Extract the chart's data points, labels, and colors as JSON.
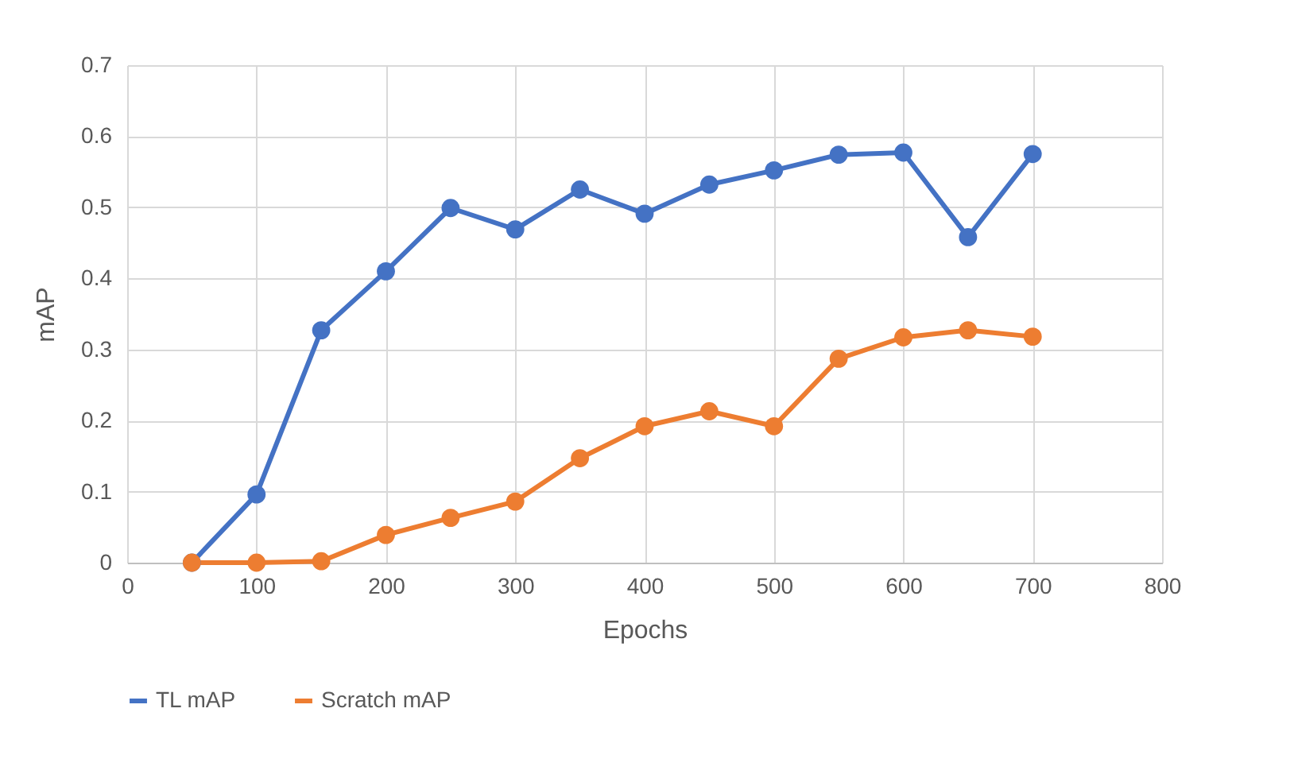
{
  "chart_data": {
    "type": "line",
    "xlabel": "Epochs",
    "ylabel": "mAP",
    "x": [
      50,
      100,
      150,
      200,
      250,
      300,
      350,
      400,
      450,
      500,
      550,
      600,
      650,
      700
    ],
    "series": [
      {
        "name": "TL mAP",
        "color": "#4472c4",
        "values": [
          0,
          0.096,
          0.327,
          0.41,
          0.499,
          0.469,
          0.525,
          0.491,
          0.532,
          0.552,
          0.574,
          0.577,
          0.458,
          0.575
        ]
      },
      {
        "name": "Scratch mAP",
        "color": "#ed7d31",
        "values": [
          0,
          0,
          0.002,
          0.039,
          0.063,
          0.086,
          0.147,
          0.192,
          0.213,
          0.192,
          0.287,
          0.317,
          0.327,
          0.318
        ]
      }
    ],
    "xlim": [
      0,
      800
    ],
    "xticks": [
      0,
      100,
      200,
      300,
      400,
      500,
      600,
      700,
      800
    ],
    "ylim": [
      0,
      0.7
    ],
    "yticks": [
      0,
      0.1,
      0.2,
      0.3,
      0.4,
      0.5,
      0.6,
      0.7
    ],
    "grid": true,
    "legend": "bottom",
    "marker": "circle",
    "line_style": "solid"
  }
}
